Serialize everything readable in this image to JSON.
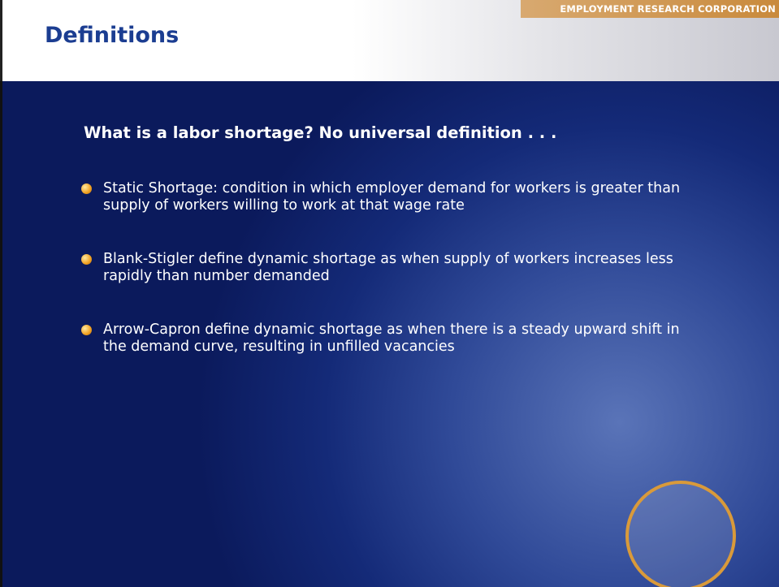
{
  "header": {
    "title": "Definitions",
    "brand": "EMPLOYMENT RESEARCH CORPORATION"
  },
  "body": {
    "heading": "What is a labor shortage? No universal definition . . .",
    "bullets": [
      "Static Shortage: condition in which employer demand for workers is greater than supply of workers willing to work at that wage rate",
      "Blank-Stigler define dynamic shortage as when supply of workers increases less rapidly than number demanded",
      "Arrow-Capron define dynamic shortage as when there is a steady upward shift in the demand curve, resulting in unfilled vacancies"
    ]
  }
}
